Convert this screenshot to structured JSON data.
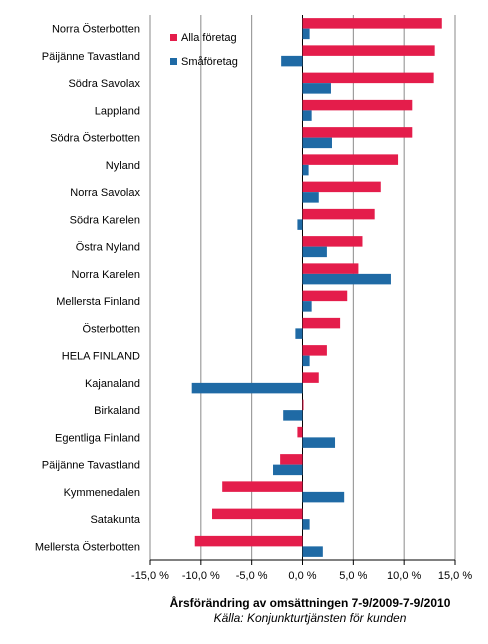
{
  "chart_data": {
    "type": "bar",
    "orientation": "horizontal",
    "categories": [
      "Norra Österbotten",
      "Päijänne Tavastland",
      "Södra Savolax",
      "Lappland",
      "Södra Österbotten",
      "Nyland",
      "Norra Savolax",
      "Södra Karelen",
      "Östra Nyland",
      "Norra Karelen",
      "Mellersta Finland",
      "Österbotten",
      "HELA FINLAND",
      "Kajanaland",
      "Birkaland",
      "Egentliga Finland",
      "Päijänne Tavastland",
      "Kymmenedalen",
      "Satakunta",
      "Mellersta Österbotten"
    ],
    "series": [
      {
        "name": "Alla företag",
        "color": "#e41d4b",
        "values": [
          13.7,
          13.0,
          12.9,
          10.8,
          10.8,
          9.4,
          7.7,
          7.1,
          5.9,
          5.5,
          4.4,
          3.7,
          2.4,
          1.6,
          0.1,
          -0.5,
          -2.2,
          -7.9,
          -8.9,
          -10.6
        ]
      },
      {
        "name": "Småföretag",
        "color": "#1f6aa5",
        "values": [
          0.7,
          -2.1,
          2.8,
          0.9,
          2.9,
          0.6,
          1.6,
          -0.5,
          2.4,
          8.7,
          0.9,
          -0.7,
          0.7,
          -10.9,
          -1.9,
          3.2,
          -2.9,
          4.1,
          0.7,
          2.0
        ]
      }
    ],
    "xlim": [
      -15,
      15
    ],
    "xticks": [
      -15,
      -10,
      -5,
      0,
      5,
      10,
      15
    ],
    "tick_labels": [
      "-15,0 %",
      "-10,0 %",
      "-5,0 %",
      "0,0 %",
      "5,0 %",
      "10,0 %",
      "15,0 %"
    ],
    "grid": true,
    "legend_position": "top-left",
    "xlabel": "Årsförändring  av omsättningen 7-9/2009-7-9/2010",
    "source": "Källa: Konjunkturtjänsten för kunden"
  }
}
